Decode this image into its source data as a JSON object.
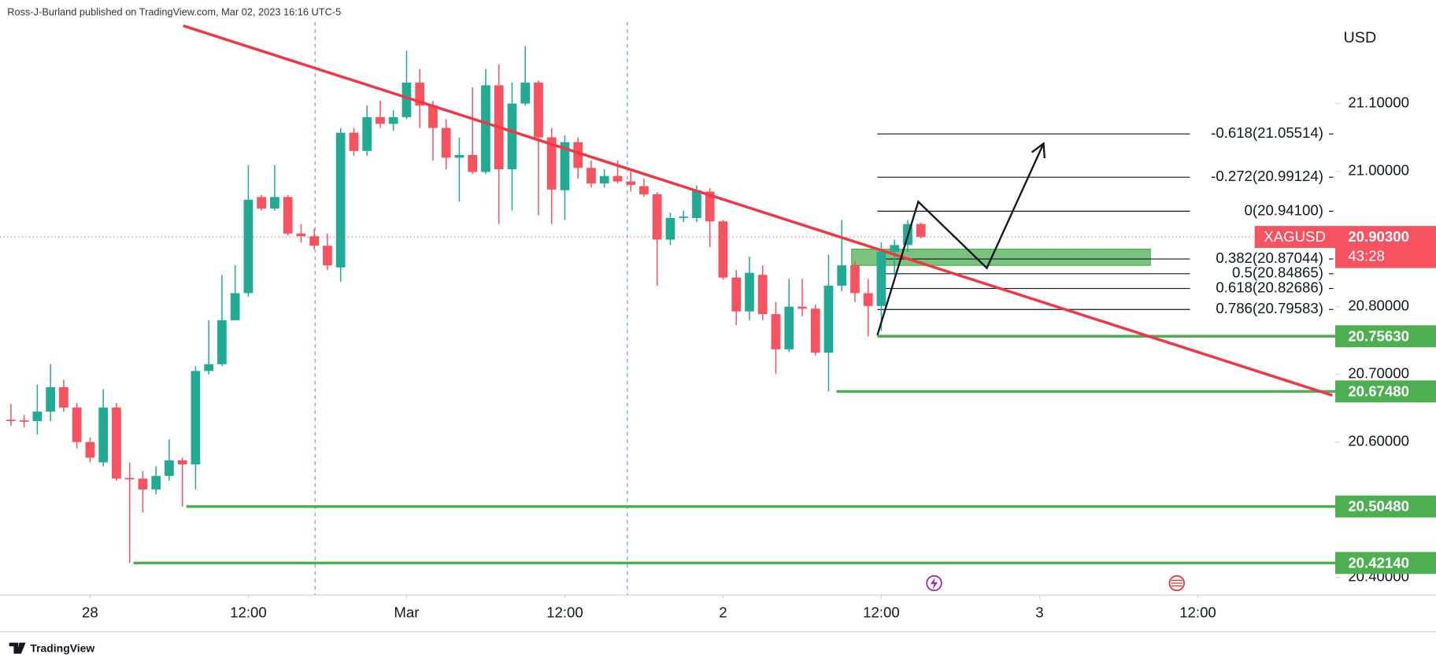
{
  "header": "Ross-J-Burland published on TradingView.com, Mar 02, 2023 16:16 UTC-5",
  "footer": "TradingView",
  "chart_data": {
    "type": "candlestick",
    "y_axis_label": "USD",
    "up_color": "#22ab94",
    "down_color": "#f7525f",
    "x": [
      -6,
      -5,
      -4,
      -3,
      -2,
      -1,
      0,
      1,
      2,
      3,
      4,
      5,
      6,
      7,
      8,
      9,
      10,
      11,
      12,
      13,
      14,
      15,
      16,
      17,
      18,
      19,
      20,
      21,
      22,
      23,
      24,
      25,
      26,
      27,
      28,
      29,
      30,
      31,
      32,
      33,
      34,
      35,
      36,
      37,
      38,
      39,
      40,
      41,
      42,
      43,
      44,
      45,
      46,
      47,
      48,
      49,
      50,
      51,
      52,
      53,
      54,
      55,
      56,
      57,
      58,
      59,
      60,
      61,
      62,
      63
    ],
    "open": [
      20.633,
      20.632,
      20.631,
      20.645,
      20.681,
      20.651,
      20.6,
      20.57,
      20.651,
      20.547,
      20.546,
      20.53,
      20.55,
      20.573,
      20.567,
      20.705,
      20.715,
      20.78,
      20.82,
      20.962,
      20.945,
      20.962,
      20.908,
      20.904,
      20.89,
      20.858,
      21.057,
      21.03,
      21.08,
      21.07,
      21.08,
      21.131,
      21.097,
      21.064,
      21.02,
      21.024,
      20.999,
      21.127,
      21.003,
      21.1,
      21.131,
      21.05,
      20.972,
      21.043,
      21.005,
      20.982,
      20.993,
      20.985,
      20.978,
      20.966,
      20.899,
      20.931,
      20.931,
      20.97,
      20.926,
      20.843,
      20.793,
      20.847,
      20.789,
      20.737,
      20.8,
      20.797,
      20.732,
      20.831,
      20.861,
      20.82,
      20.801,
      20.881,
      20.891,
      20.922
    ],
    "high": [
      20.656,
      20.64,
      20.685,
      20.715,
      20.692,
      20.658,
      20.607,
      20.678,
      20.658,
      20.57,
      20.557,
      20.564,
      20.604,
      20.577,
      20.712,
      20.78,
      20.847,
      20.861,
      21.009,
      20.965,
      21.009,
      20.965,
      20.922,
      20.915,
      20.908,
      21.064,
      21.064,
      21.097,
      21.104,
      21.09,
      21.178,
      21.151,
      21.104,
      21.077,
      21.05,
      21.124,
      21.151,
      21.158,
      21.131,
      21.185,
      21.134,
      21.064,
      21.053,
      21.05,
      21.016,
      21.003,
      21.016,
      21.0,
      20.989,
      20.969,
      20.939,
      20.942,
      20.979,
      20.975,
      20.928,
      20.854,
      20.874,
      20.861,
      20.807,
      20.841,
      20.841,
      20.803,
      20.877,
      20.928,
      20.868,
      20.841,
      20.895,
      20.899,
      20.928,
      20.924
    ],
    "low": [
      20.624,
      20.622,
      20.611,
      20.631,
      20.645,
      20.591,
      20.57,
      20.564,
      20.543,
      20.4214,
      20.496,
      20.523,
      20.543,
      20.5048,
      20.53,
      20.7,
      20.712,
      20.78,
      20.815,
      20.942,
      20.942,
      20.905,
      20.895,
      20.885,
      20.854,
      20.837,
      21.023,
      21.023,
      21.064,
      21.06,
      21.077,
      21.064,
      21.016,
      21.003,
      20.955,
      20.996,
      20.996,
      20.922,
      20.942,
      21.097,
      20.935,
      20.922,
      20.928,
      20.989,
      20.976,
      20.976,
      20.982,
      20.97,
      20.962,
      20.831,
      20.891,
      20.925,
      20.925,
      20.888,
      20.84,
      20.773,
      20.78,
      20.78,
      20.701,
      20.733,
      20.786,
      20.728,
      20.6748,
      20.823,
      20.807,
      20.7563,
      20.764,
      20.847,
      20.881,
      20.901
    ],
    "close": [
      20.631,
      20.63,
      20.645,
      20.681,
      20.651,
      20.6,
      20.577,
      20.651,
      20.546,
      20.545,
      20.53,
      20.55,
      20.573,
      20.567,
      20.705,
      20.715,
      20.78,
      20.82,
      20.958,
      20.945,
      20.962,
      20.908,
      20.904,
      20.89,
      20.861,
      21.057,
      21.03,
      21.08,
      21.07,
      21.08,
      21.131,
      21.097,
      21.064,
      21.02,
      21.024,
      20.999,
      21.127,
      21.003,
      21.1,
      21.131,
      21.05,
      20.973,
      21.043,
      21.005,
      20.982,
      20.993,
      20.985,
      20.98,
      20.966,
      20.899,
      20.931,
      20.933,
      20.972,
      20.926,
      20.843,
      20.793,
      20.85,
      20.789,
      20.737,
      20.8,
      20.797,
      20.732,
      20.831,
      20.861,
      20.82,
      20.801,
      20.881,
      20.891,
      20.922,
      20.903
    ],
    "xlim": [
      -6.83,
      94.42
    ],
    "xticks": [
      {
        "value": 0,
        "label": "28"
      },
      {
        "value": 12,
        "label": "12:00"
      },
      {
        "value": 24,
        "label": "Mar"
      },
      {
        "value": 36,
        "label": "12:00"
      },
      {
        "value": 48,
        "label": "2"
      },
      {
        "value": 60,
        "label": "12:00"
      },
      {
        "value": 72,
        "label": "3"
      },
      {
        "value": 84,
        "label": "12:00"
      }
    ],
    "ylim": [
      20.374,
      21.253
    ],
    "yticks": [
      {
        "value": 20.4,
        "label": "20.40000"
      },
      {
        "value": 20.6,
        "label": "20.60000"
      },
      {
        "value": 20.7,
        "label": "20.70000"
      },
      {
        "value": 20.8,
        "label": "20.80000"
      },
      {
        "value": 21.0,
        "label": "21.00000"
      },
      {
        "value": 21.1,
        "label": "21.10000"
      }
    ],
    "trendline": {
      "color": "#f23645",
      "x": [
        7.06,
        94.2
      ],
      "y": [
        21.215,
        20.669
      ]
    },
    "support_color": "#4caf50",
    "support_levels": [
      {
        "value": 20.7563,
        "label": "20.75630",
        "x_start": 59.7
      },
      {
        "value": 20.6748,
        "label": "20.67480",
        "x_start": 56.6
      },
      {
        "value": 20.5048,
        "label": "20.50480",
        "x_start": 7.3
      },
      {
        "value": 20.4214,
        "label": "20.42140",
        "x_start": 3.3
      }
    ],
    "fib_x": [
      59.7,
      83.4
    ],
    "fib_levels": [
      {
        "value": 21.05514,
        "label": "-0.618(21.05514)"
      },
      {
        "value": 20.99124,
        "label": "-0.272(20.99124)"
      },
      {
        "value": 20.941,
        "label": "0(20.94100)"
      },
      {
        "value": 20.87044,
        "label": "0.382(20.87044)"
      },
      {
        "value": 20.84865,
        "label": "0.5(20.84865)"
      },
      {
        "value": 20.82686,
        "label": "0.618(20.82686)"
      },
      {
        "value": 20.79583,
        "label": "0.786(20.79583)"
      }
    ],
    "zone": {
      "x": [
        57.75,
        80.4
      ],
      "y": [
        20.861,
        20.885
      ]
    },
    "projection": {
      "x": [
        59.7,
        62.8,
        68.0,
        72.3
      ],
      "y": [
        20.758,
        20.955,
        20.857,
        21.041
      ]
    },
    "last_price": {
      "symbol": "XAGUSD",
      "value": 20.903,
      "label": "20.90300",
      "countdown": "43:28"
    }
  }
}
